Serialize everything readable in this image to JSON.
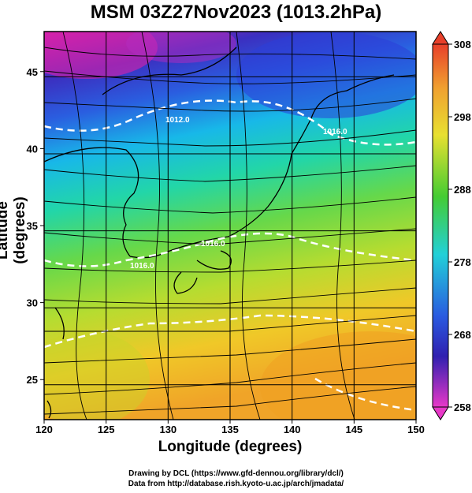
{
  "title": "MSM 03Z27Nov2023 (1013.2hPa)",
  "x_axis": {
    "label": "Longitude (degrees)",
    "ticks": [
      120,
      125,
      130,
      135,
      140,
      145,
      150
    ],
    "range": [
      120,
      150
    ]
  },
  "y_axis": {
    "label": "Latitude  (degrees)",
    "ticks": [
      25,
      30,
      35,
      40,
      45
    ],
    "range": [
      22.4,
      47.6
    ]
  },
  "colorbar": {
    "min": 258,
    "max": 308,
    "labels": [
      308,
      298,
      288,
      278,
      268,
      258
    ]
  },
  "contour_labels": [
    "1012.0",
    "1016.0",
    "1016.0",
    "1016.0"
  ],
  "colors": {
    "low": "#d81fb0",
    "cold": "#2233cc",
    "mid": "#1ec9e0",
    "warm": "#33cc33",
    "hot": "#f0c020",
    "max": "#e8402a"
  },
  "credits": {
    "line1": "Drawing by DCL (https://www.gfd-dennou.org/library/dcl/)",
    "line2": "Data from http://database.rish.kyoto-u.ac.jp/arch/jmadata/"
  }
}
